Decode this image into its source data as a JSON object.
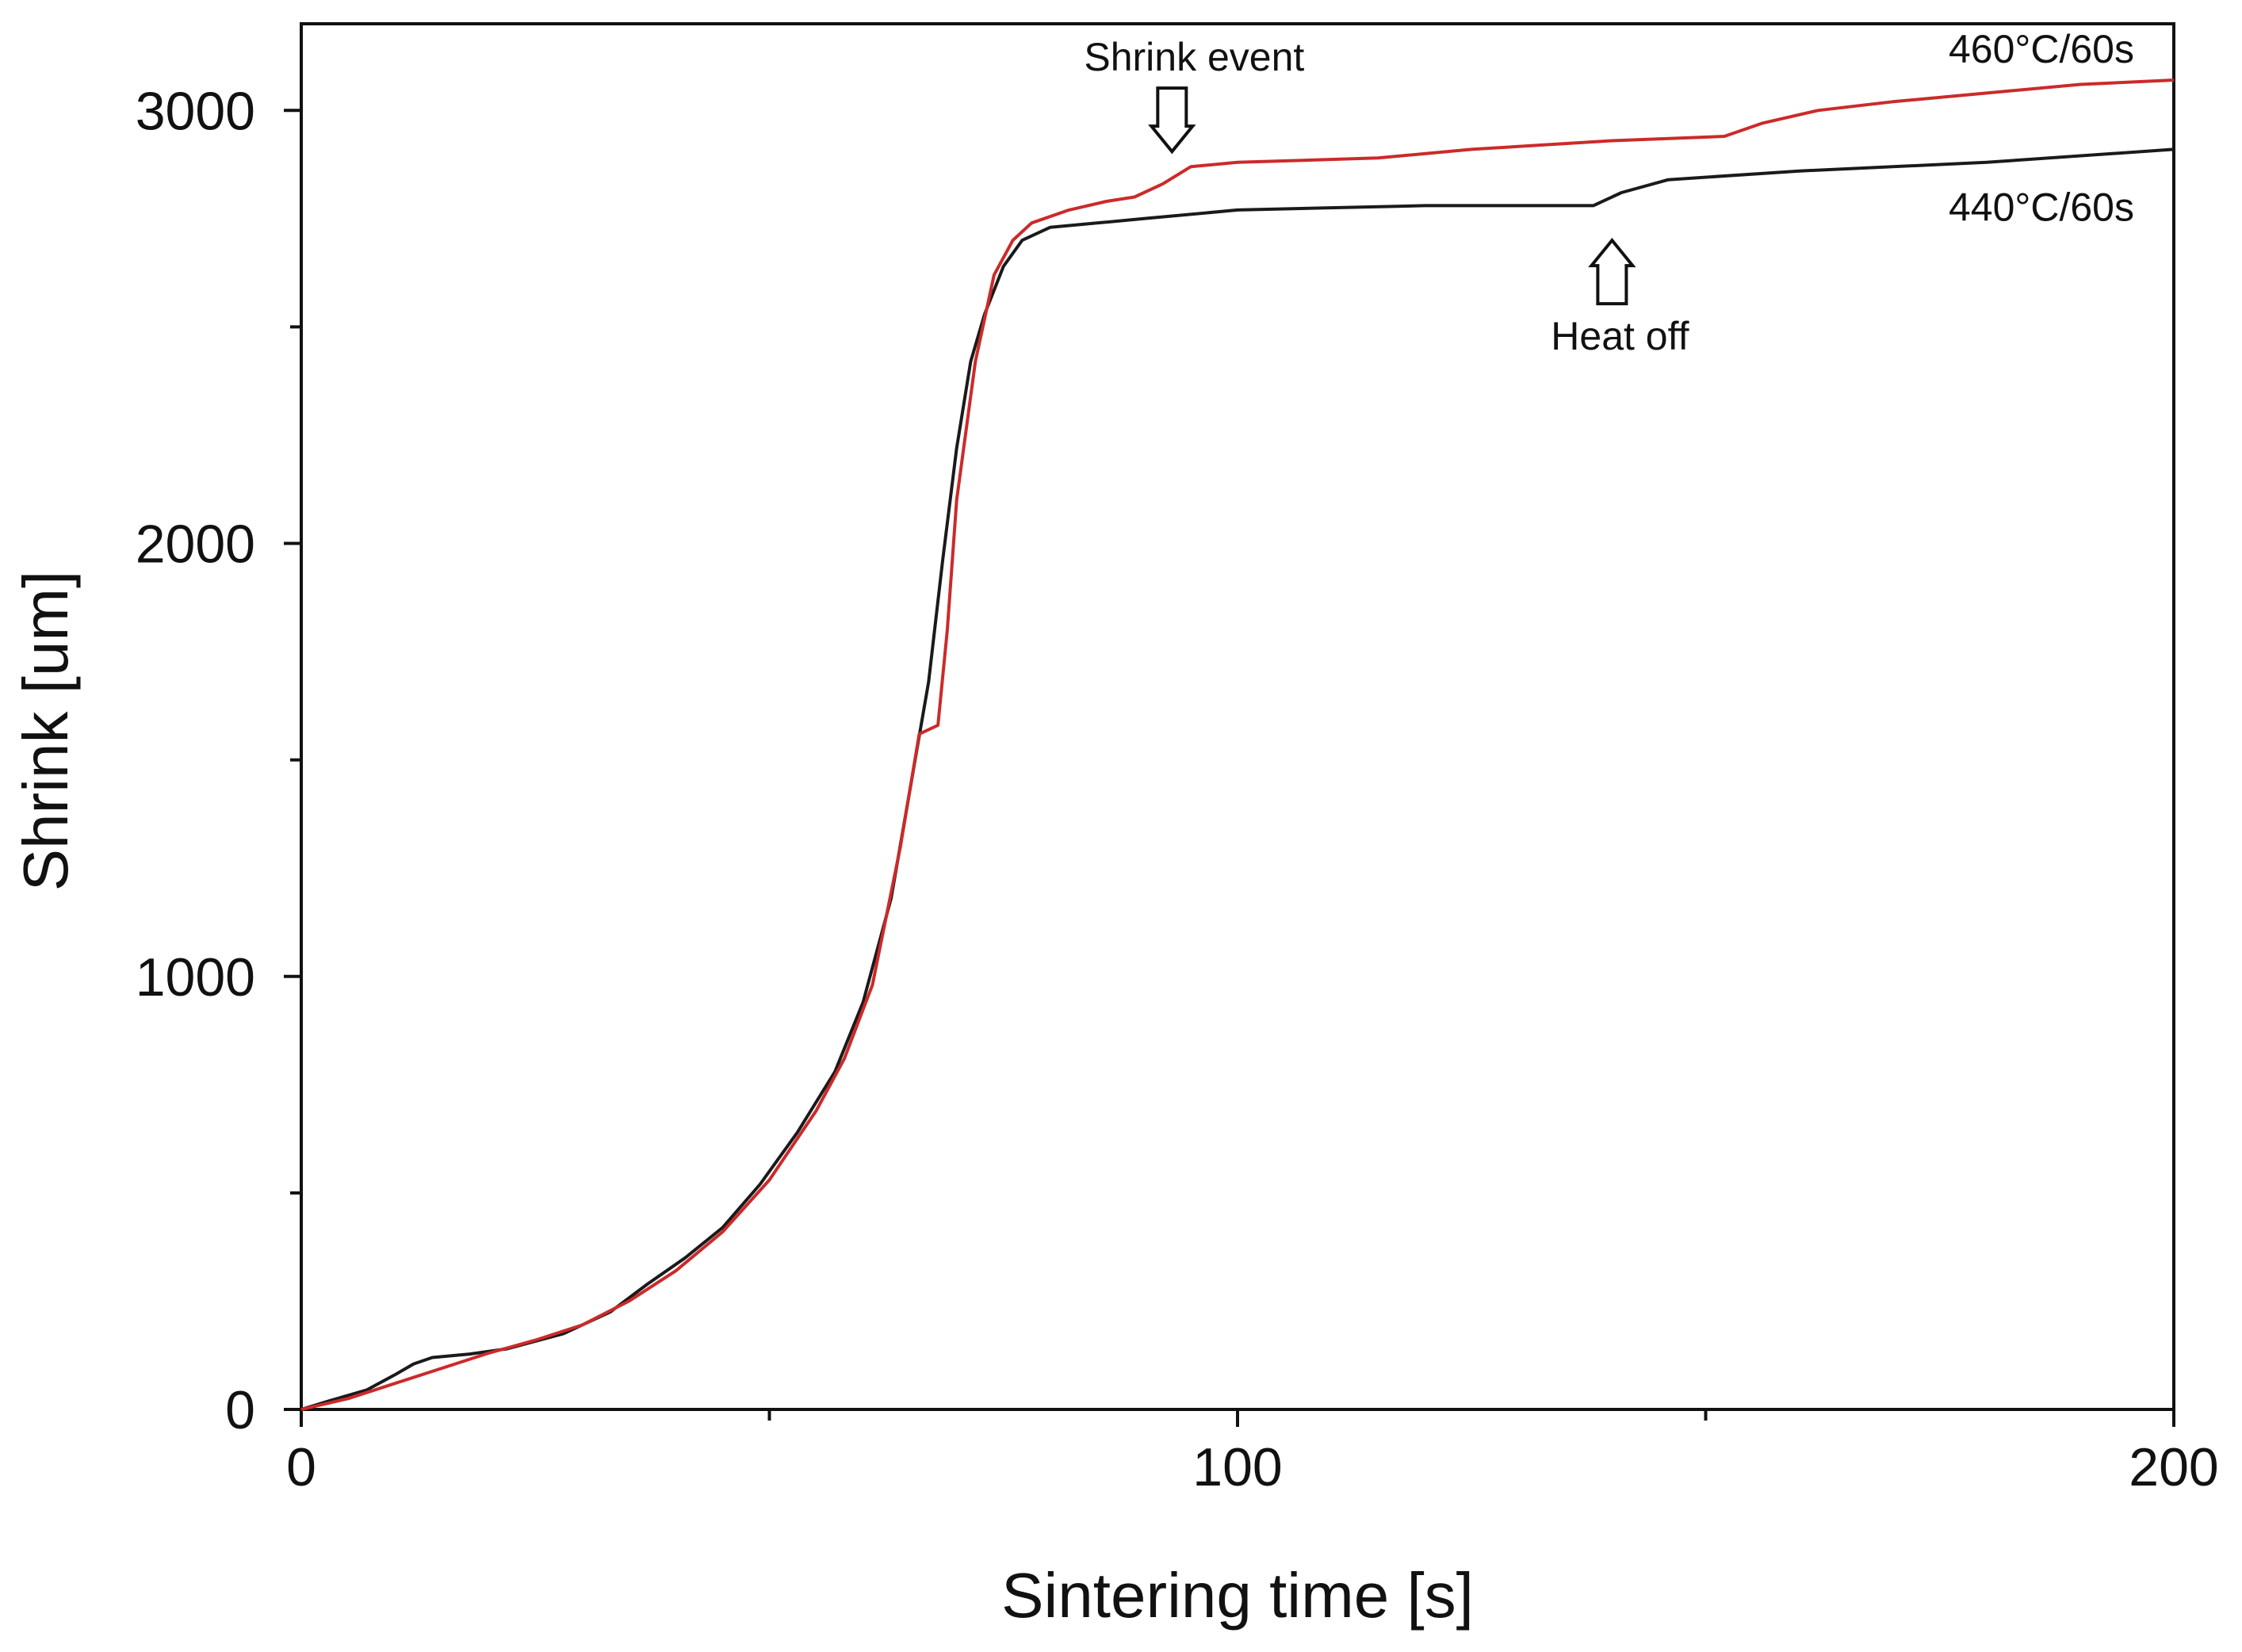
{
  "chart_data": {
    "type": "line",
    "title": "",
    "xlabel": "Sintering time [s]",
    "ylabel": "Shrink [um]",
    "xlim": [
      0,
      200
    ],
    "ylim": [
      0,
      3200
    ],
    "x_ticks": [
      0,
      100,
      200
    ],
    "x_minor_ticks": [
      50,
      150
    ],
    "y_ticks": [
      0,
      1000,
      2000,
      3000
    ],
    "y_minor_ticks": [
      500,
      1500,
      2500
    ],
    "grid": false,
    "series": [
      {
        "name": "440°C/60s",
        "color": "#1a1a1a",
        "points": [
          [
            0,
            0
          ],
          [
            3,
            20
          ],
          [
            7,
            45
          ],
          [
            10,
            80
          ],
          [
            12,
            105
          ],
          [
            14,
            120
          ],
          [
            18,
            128
          ],
          [
            22,
            140
          ],
          [
            28,
            175
          ],
          [
            33,
            225
          ],
          [
            37,
            290
          ],
          [
            41,
            350
          ],
          [
            45,
            420
          ],
          [
            49,
            520
          ],
          [
            53,
            640
          ],
          [
            57,
            780
          ],
          [
            60,
            940
          ],
          [
            63,
            1180
          ],
          [
            65,
            1430
          ],
          [
            67,
            1680
          ],
          [
            68.5,
            1960
          ],
          [
            70,
            2220
          ],
          [
            71.5,
            2420
          ],
          [
            73,
            2530
          ],
          [
            75,
            2640
          ],
          [
            77,
            2700
          ],
          [
            80,
            2730
          ],
          [
            85,
            2740
          ],
          [
            90,
            2750
          ],
          [
            100,
            2770
          ],
          [
            120,
            2780
          ],
          [
            138,
            2780
          ],
          [
            141,
            2810
          ],
          [
            146,
            2840
          ],
          [
            160,
            2860
          ],
          [
            180,
            2880
          ],
          [
            200,
            2910
          ]
        ]
      },
      {
        "name": "460°C/60s",
        "color": "#cc2a2a",
        "points": [
          [
            0,
            0
          ],
          [
            5,
            25
          ],
          [
            10,
            60
          ],
          [
            15,
            95
          ],
          [
            20,
            130
          ],
          [
            25,
            160
          ],
          [
            30,
            195
          ],
          [
            35,
            250
          ],
          [
            40,
            320
          ],
          [
            45,
            410
          ],
          [
            50,
            530
          ],
          [
            55,
            690
          ],
          [
            58,
            810
          ],
          [
            61,
            980
          ],
          [
            64,
            1300
          ],
          [
            66,
            1560
          ],
          [
            68,
            1580
          ],
          [
            69,
            1800
          ],
          [
            70,
            2100
          ],
          [
            72,
            2420
          ],
          [
            74,
            2620
          ],
          [
            76,
            2700
          ],
          [
            78,
            2740
          ],
          [
            82,
            2770
          ],
          [
            86,
            2790
          ],
          [
            89,
            2800
          ],
          [
            92,
            2830
          ],
          [
            95,
            2870
          ],
          [
            100,
            2880
          ],
          [
            115,
            2890
          ],
          [
            125,
            2910
          ],
          [
            140,
            2930
          ],
          [
            152,
            2940
          ],
          [
            156,
            2970
          ],
          [
            162,
            3000
          ],
          [
            170,
            3020
          ],
          [
            180,
            3040
          ],
          [
            190,
            3060
          ],
          [
            200,
            3070
          ]
        ]
      }
    ],
    "annotations": [
      {
        "text": "Shrink event",
        "x": 93,
        "y": 2905,
        "arrow": "down"
      },
      {
        "text": "Heat off",
        "x": 140,
        "y": 2700,
        "arrow": "up"
      }
    ]
  }
}
